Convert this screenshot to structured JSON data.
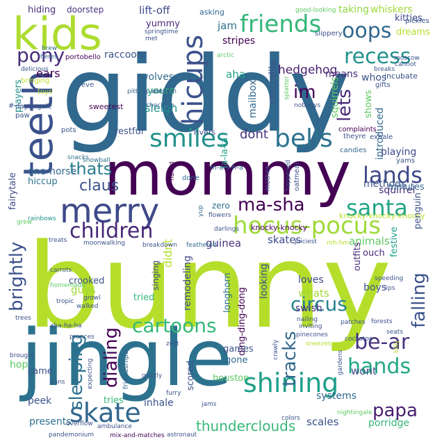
{
  "palette": {
    "purple": "#440154",
    "indigo": "#472d7b",
    "blue": "#3b528b",
    "steel": "#2c728e",
    "teal": "#21918c",
    "green": "#28ae80",
    "lime": "#5ec962",
    "yellowgreen": "#addc30",
    "yellow": "#fde725"
  },
  "words": [
    {
      "text": "bunny",
      "color": "#b5de2b"
    },
    {
      "text": "giddy",
      "color": "#31688e"
    },
    {
      "text": "jingle",
      "color": "#2c728e"
    },
    {
      "text": "mommy",
      "color": "#440154"
    },
    {
      "text": "kids",
      "color": "#addc30"
    },
    {
      "text": "teeth",
      "color": "#3b528b"
    },
    {
      "text": "merry",
      "color": "#3e4989"
    },
    {
      "text": "hicups",
      "color": "#3b528b"
    },
    {
      "text": "friends",
      "color": "#35b779"
    },
    {
      "text": "smiles",
      "color": "#21918c"
    },
    {
      "text": "bells",
      "color": "#2c728e"
    },
    {
      "text": "hocus-pocus",
      "color": "#a0da39"
    },
    {
      "text": "shining",
      "color": "#1f9e89"
    },
    {
      "text": "skate",
      "color": "#31688e"
    },
    {
      "text": "lands",
      "color": "#3e4989"
    },
    {
      "text": "oops",
      "color": "#31688e"
    },
    {
      "text": "recess",
      "color": "#21918c"
    },
    {
      "text": "santa",
      "color": "#21a585"
    },
    {
      "text": "pony",
      "color": "#472d7b"
    },
    {
      "text": "children",
      "color": "#482878"
    },
    {
      "text": "ma-sha",
      "color": "#440154"
    },
    {
      "text": "cartoons",
      "color": "#35b779"
    },
    {
      "text": "circus",
      "color": "#26828e"
    },
    {
      "text": "hands",
      "color": "#22a884"
    },
    {
      "text": "papa",
      "color": "#481f70"
    },
    {
      "text": "be-ar",
      "color": "#46327e"
    },
    {
      "text": "brightly",
      "color": "#3b528b"
    },
    {
      "text": "dialing",
      "color": "#440154"
    },
    {
      "text": "sleeping",
      "color": "#2c728e"
    },
    {
      "text": "tracks",
      "color": "#31688e"
    },
    {
      "text": "falling",
      "color": "#3b528b"
    },
    {
      "text": "thunderclouds",
      "color": "#38b977"
    },
    {
      "text": "thats",
      "color": "#287c8e"
    },
    {
      "text": "claus",
      "color": "#3b528b"
    },
    {
      "text": "im",
      "color": "#440154"
    },
    {
      "text": "lets",
      "color": "#482878"
    },
    {
      "text": "dont",
      "color": "#46327e"
    },
    {
      "text": "hedgehog",
      "color": "#481f70"
    },
    {
      "text": "stripes",
      "color": "#440154"
    },
    {
      "text": "jam",
      "color": "#2c728e"
    },
    {
      "text": "aha",
      "color": "#1f9e89"
    },
    {
      "text": "sleigh",
      "color": "#21918c"
    },
    {
      "text": "youre",
      "color": "#35b779"
    },
    {
      "text": "wolves",
      "color": "#31688e"
    },
    {
      "text": "ears",
      "color": "#440154"
    },
    {
      "text": "raccoon",
      "color": "#3b528b"
    },
    {
      "text": "yummy",
      "color": "#482878"
    },
    {
      "text": "lift-off",
      "color": "#3e4989"
    },
    {
      "text": "hiding",
      "color": "#472d7b"
    },
    {
      "text": "doorstep",
      "color": "#46327e"
    },
    {
      "text": "taking",
      "color": "#90d743"
    },
    {
      "text": "whiskers",
      "color": "#a0da39"
    },
    {
      "text": "kitties",
      "color": "#3e4989"
    },
    {
      "text": "dreams",
      "color": "#b5de2b"
    },
    {
      "text": "means",
      "color": "#472d7b"
    },
    {
      "text": "whos",
      "color": "#3b528b"
    },
    {
      "text": "incubate",
      "color": "#3b528b"
    },
    {
      "text": "squirrels",
      "color": "#5ec962"
    },
    {
      "text": "shows",
      "color": "#5ec962"
    },
    {
      "text": "introduced",
      "color": "#31688e"
    },
    {
      "text": "crocodile",
      "color": "#3b528b"
    },
    {
      "text": "mailbox",
      "color": "#31688e"
    },
    {
      "text": "la-la-la",
      "color": "#1fa187"
    },
    {
      "text": "playing",
      "color": "#3e4989"
    },
    {
      "text": "methods",
      "color": "#3b528b"
    },
    {
      "text": "squirrel",
      "color": "#472d7b"
    },
    {
      "text": "minutes",
      "color": "#31688e"
    },
    {
      "text": "one-horse",
      "color": "#31688e"
    },
    {
      "text": "fairytale",
      "color": "#3e4989"
    },
    {
      "text": "hiccup",
      "color": "#2c728e"
    },
    {
      "text": "knocky-knocky",
      "color": "#440154"
    },
    {
      "text": "knocky-knocky-knocky",
      "color": "#b5de2b"
    },
    {
      "text": "zero",
      "color": "#2c728e"
    },
    {
      "text": "guinea",
      "color": "#46327e"
    },
    {
      "text": "skates",
      "color": "#3e4989"
    },
    {
      "text": "animals",
      "color": "#5ec962"
    },
    {
      "text": "didnt",
      "color": "#b5de2b"
    },
    {
      "text": "festive",
      "color": "#1f9e89"
    },
    {
      "text": "penguin",
      "color": "#3b528b"
    },
    {
      "text": "outfits",
      "color": "#472d7b"
    },
    {
      "text": "ouch",
      "color": "#482878"
    },
    {
      "text": "singing",
      "color": "#3e4989"
    },
    {
      "text": "remodeling",
      "color": "#3e4989"
    },
    {
      "text": "looking",
      "color": "#3b528b"
    },
    {
      "text": "loves",
      "color": "#3e4989"
    },
    {
      "text": "boys",
      "color": "#3b528b"
    },
    {
      "text": "crooked",
      "color": "#3b528b"
    },
    {
      "text": "guys",
      "color": "#a0da39"
    },
    {
      "text": "tried",
      "color": "#35b779"
    },
    {
      "text": "longhorn",
      "color": "#2c728e"
    },
    {
      "text": "ding-ding-dong",
      "color": "#440154"
    },
    {
      "text": "whats",
      "color": "#a0da39"
    },
    {
      "text": "swish",
      "color": "#472d7b"
    },
    {
      "text": "games",
      "color": "#3b528b"
    },
    {
      "text": "gone",
      "color": "#31688e"
    },
    {
      "text": "wont",
      "color": "#3e4989"
    },
    {
      "text": "systems",
      "color": "#31688e"
    },
    {
      "text": "houston",
      "color": "#5ec962"
    },
    {
      "text": "scored",
      "color": "#3b528b"
    },
    {
      "text": "inhale",
      "color": "#3b528b"
    },
    {
      "text": "tries",
      "color": "#35b779"
    },
    {
      "text": "scales",
      "color": "#3b528b"
    },
    {
      "text": "porridge",
      "color": "#35b779"
    },
    {
      "text": "presents",
      "color": "#2c728e"
    },
    {
      "text": "peek",
      "color": "#3b528b"
    },
    {
      "text": "hop",
      "color": "#5ec962"
    },
    {
      "text": "came",
      "color": "#3b528b"
    },
    {
      "text": "friendships",
      "color": "#31688e"
    },
    {
      "text": "players",
      "color": "#21918c"
    },
    {
      "text": "restful",
      "color": "#3b528b"
    },
    {
      "text": "eve",
      "color": "#3b528b"
    },
    {
      "text": "sweetest",
      "color": "#440154"
    },
    {
      "text": "rivers",
      "color": "#3e4989"
    },
    {
      "text": "snacks",
      "color": "#2c728e"
    },
    {
      "text": "snowball",
      "color": "#2c728e"
    },
    {
      "text": "autumn",
      "color": "#3b528b"
    },
    {
      "text": "pitter-patter",
      "color": "#31688e"
    },
    {
      "text": "check-up",
      "color": "#31688e"
    },
    {
      "text": "daytingale",
      "color": "#3b528b"
    },
    {
      "text": "paw",
      "color": "#3b528b"
    },
    {
      "text": "pots",
      "color": "#3b528b"
    },
    {
      "text": "toys",
      "color": "#b5de2b"
    },
    {
      "text": "bringing",
      "color": "#c2df23"
    },
    {
      "text": "delicious",
      "color": "#3b528b"
    },
    {
      "text": "heres",
      "color": "#31688e"
    },
    {
      "text": "brew",
      "color": "#31688e"
    },
    {
      "text": "portobello",
      "color": "#440154"
    },
    {
      "text": "springtime",
      "color": "#3b528b"
    },
    {
      "text": "met",
      "color": "#3b528b"
    },
    {
      "text": "arctic",
      "color": "#5ec962"
    },
    {
      "text": "asking",
      "color": "#31688e"
    },
    {
      "text": "good-looking",
      "color": "#5ec962"
    },
    {
      "text": "pickles",
      "color": "#3b528b"
    },
    {
      "text": "slippery",
      "color": "#3b528b"
    },
    {
      "text": "moscow",
      "color": "#3b528b"
    },
    {
      "text": "cannot",
      "color": "#3b528b"
    },
    {
      "text": "breaks",
      "color": "#3b528b"
    },
    {
      "text": "gifts",
      "color": "#3b528b"
    },
    {
      "text": "nobodys",
      "color": "#3b528b"
    },
    {
      "text": "splatter",
      "color": "#5ec962"
    },
    {
      "text": "complaints",
      "color": "#440154"
    },
    {
      "text": "theyre",
      "color": "#3b528b"
    },
    {
      "text": "exhale",
      "color": "#3b528b"
    },
    {
      "text": "yams",
      "color": "#3b528b"
    },
    {
      "text": "candies",
      "color": "#31688e"
    },
    {
      "text": "m-a-s-h-a",
      "color": "#31688e"
    },
    {
      "text": "mother",
      "color": "#3b528b"
    },
    {
      "text": "happened",
      "color": "#3b528b"
    },
    {
      "text": "oatmeal",
      "color": "#3b528b"
    },
    {
      "text": "done",
      "color": "#31688e"
    },
    {
      "text": "nailed",
      "color": "#440154"
    },
    {
      "text": "yup",
      "color": "#31688e"
    },
    {
      "text": "flowers",
      "color": "#3b528b"
    },
    {
      "text": "darlings",
      "color": "#3b528b"
    },
    {
      "text": "juiciest",
      "color": "#3b528b"
    },
    {
      "text": "mh-hm",
      "color": "#b5de2b"
    },
    {
      "text": "rainbows",
      "color": "#21918c"
    },
    {
      "text": "grew",
      "color": "#5ec962"
    },
    {
      "text": "treats",
      "color": "#3b528b"
    },
    {
      "text": "moonwalking",
      "color": "#3b528b"
    },
    {
      "text": "breakdown",
      "color": "#3b528b"
    },
    {
      "text": "feathered",
      "color": "#31688e"
    },
    {
      "text": "carrots",
      "color": "#3b528b"
    },
    {
      "text": "homemade",
      "color": "#5ec962"
    },
    {
      "text": "tropic",
      "color": "#3b528b"
    },
    {
      "text": "growl",
      "color": "#3b528b"
    },
    {
      "text": "walked",
      "color": "#3b528b"
    },
    {
      "text": "trees",
      "color": "#3b528b"
    },
    {
      "text": "aha-ha-ha",
      "color": "#3b528b"
    },
    {
      "text": "prances",
      "color": "#3b528b"
    },
    {
      "text": "brought",
      "color": "#3b528b"
    },
    {
      "text": "pans",
      "color": "#3b528b"
    },
    {
      "text": "expecting",
      "color": "#3b528b"
    },
    {
      "text": "grizzly",
      "color": "#3b528b"
    },
    {
      "text": "furry",
      "color": "#3b528b"
    },
    {
      "text": "zest",
      "color": "#3b528b"
    },
    {
      "text": "crawly",
      "color": "#3b528b"
    },
    {
      "text": "nailing",
      "color": "#3b528b"
    },
    {
      "text": "inviting",
      "color": "#3b528b"
    },
    {
      "text": "pinecones",
      "color": "#3b528b"
    },
    {
      "text": "sneezes",
      "color": "#b5de2b"
    },
    {
      "text": "patches",
      "color": "#3b528b"
    },
    {
      "text": "forests",
      "color": "#3b528b"
    },
    {
      "text": "cockatoo",
      "color": "#3b528b"
    },
    {
      "text": "seats",
      "color": "#3b528b"
    },
    {
      "text": "billy",
      "color": "#b5de2b"
    },
    {
      "text": "gardens",
      "color": "#3b528b"
    },
    {
      "text": "lips",
      "color": "#3b528b"
    },
    {
      "text": "speeding",
      "color": "#3b528b"
    },
    {
      "text": "overflow",
      "color": "#3b528b"
    },
    {
      "text": "ambulance",
      "color": "#3b528b"
    },
    {
      "text": "jams",
      "color": "#3b528b"
    },
    {
      "text": "colors",
      "color": "#3b528b"
    },
    {
      "text": "nightingale",
      "color": "#5ec962"
    },
    {
      "text": "mix-and-matches",
      "color": "#440154"
    },
    {
      "text": "astronaut",
      "color": "#3b528b"
    },
    {
      "text": "pandemonium",
      "color": "#3b528b"
    },
    {
      "text": "#",
      "color": "#3b528b"
    }
  ]
}
